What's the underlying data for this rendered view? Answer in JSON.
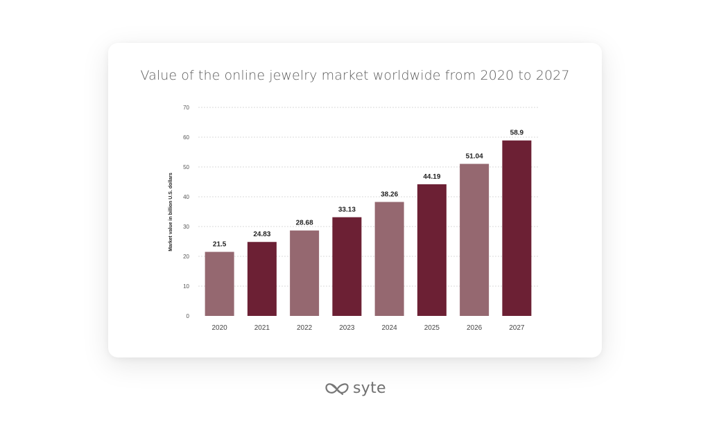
{
  "brand": {
    "name": "syte"
  },
  "colors": {
    "bar_light": "#956870",
    "bar_dark": "#6c2034",
    "grid": "#d9d9d9",
    "text": "#333333"
  },
  "chart_data": {
    "type": "bar",
    "title": "Value of the online jewelry market worldwide from 2020 to 2027",
    "xlabel": "",
    "ylabel": "Market value in billion U.S. dollars",
    "categories": [
      "2020",
      "2021",
      "2022",
      "2023",
      "2024",
      "2025",
      "2026",
      "2027"
    ],
    "values": [
      21.5,
      24.83,
      28.68,
      33.13,
      38.26,
      44.19,
      51.04,
      58.9
    ],
    "value_labels": [
      "21.5",
      "24.83",
      "28.68",
      "33.13",
      "38.26",
      "44.19",
      "51.04",
      "58.9"
    ],
    "bar_colors": [
      "#956870",
      "#6c2034",
      "#956870",
      "#6c2034",
      "#956870",
      "#6c2034",
      "#956870",
      "#6c2034"
    ],
    "ylim": [
      0,
      70
    ],
    "yticks": [
      0,
      10,
      20,
      30,
      40,
      50,
      60,
      70
    ],
    "grid": true,
    "legend": "none"
  }
}
